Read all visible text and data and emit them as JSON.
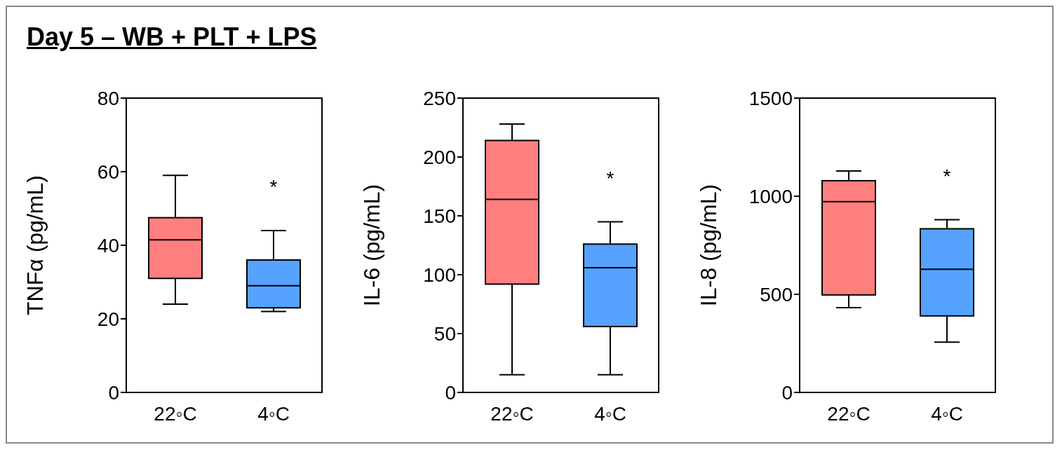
{
  "chart_data": [
    {
      "type": "box",
      "title": "Day 5 – WB + PLT + LPS",
      "ylabel": "TNFα (pg/mL)",
      "categories": [
        "22◦C",
        "4◦C"
      ],
      "colors": [
        "#ff7f7f",
        "#55a2ff"
      ],
      "ylim": [
        0,
        80
      ],
      "yticks": [
        0,
        20,
        40,
        60,
        80
      ],
      "boxes": [
        {
          "low": 24,
          "q1": 31,
          "median": 41.5,
          "q3": 47.5,
          "high": 59
        },
        {
          "low": 22,
          "q1": 23,
          "median": 29,
          "q3": 36,
          "high": 44
        }
      ],
      "annotations": [
        "*"
      ]
    },
    {
      "type": "box",
      "ylabel": "IL-6 (pg/mL)",
      "categories": [
        "22◦C",
        "4◦C"
      ],
      "colors": [
        "#ff7f7f",
        "#55a2ff"
      ],
      "ylim": [
        0,
        250
      ],
      "yticks": [
        0,
        50,
        100,
        150,
        200,
        250
      ],
      "boxes": [
        {
          "low": 15,
          "q1": 92,
          "median": 164,
          "q3": 214,
          "high": 228
        },
        {
          "low": 15,
          "q1": 56,
          "median": 106,
          "q3": 126,
          "high": 145
        }
      ],
      "annotations": [
        "*"
      ]
    },
    {
      "type": "box",
      "ylabel": "IL-8 (pg/mL)",
      "categories": [
        "22◦C",
        "4◦C"
      ],
      "colors": [
        "#ff7f7f",
        "#55a2ff"
      ],
      "ylim": [
        0,
        1500
      ],
      "yticks": [
        0,
        500,
        1000,
        1500
      ],
      "boxes": [
        {
          "low": 432,
          "q1": 497,
          "median": 972,
          "q3": 1079,
          "high": 1129
        },
        {
          "low": 256,
          "q1": 390,
          "median": 628,
          "q3": 834,
          "high": 880
        }
      ],
      "annotations": [
        "*"
      ]
    }
  ]
}
